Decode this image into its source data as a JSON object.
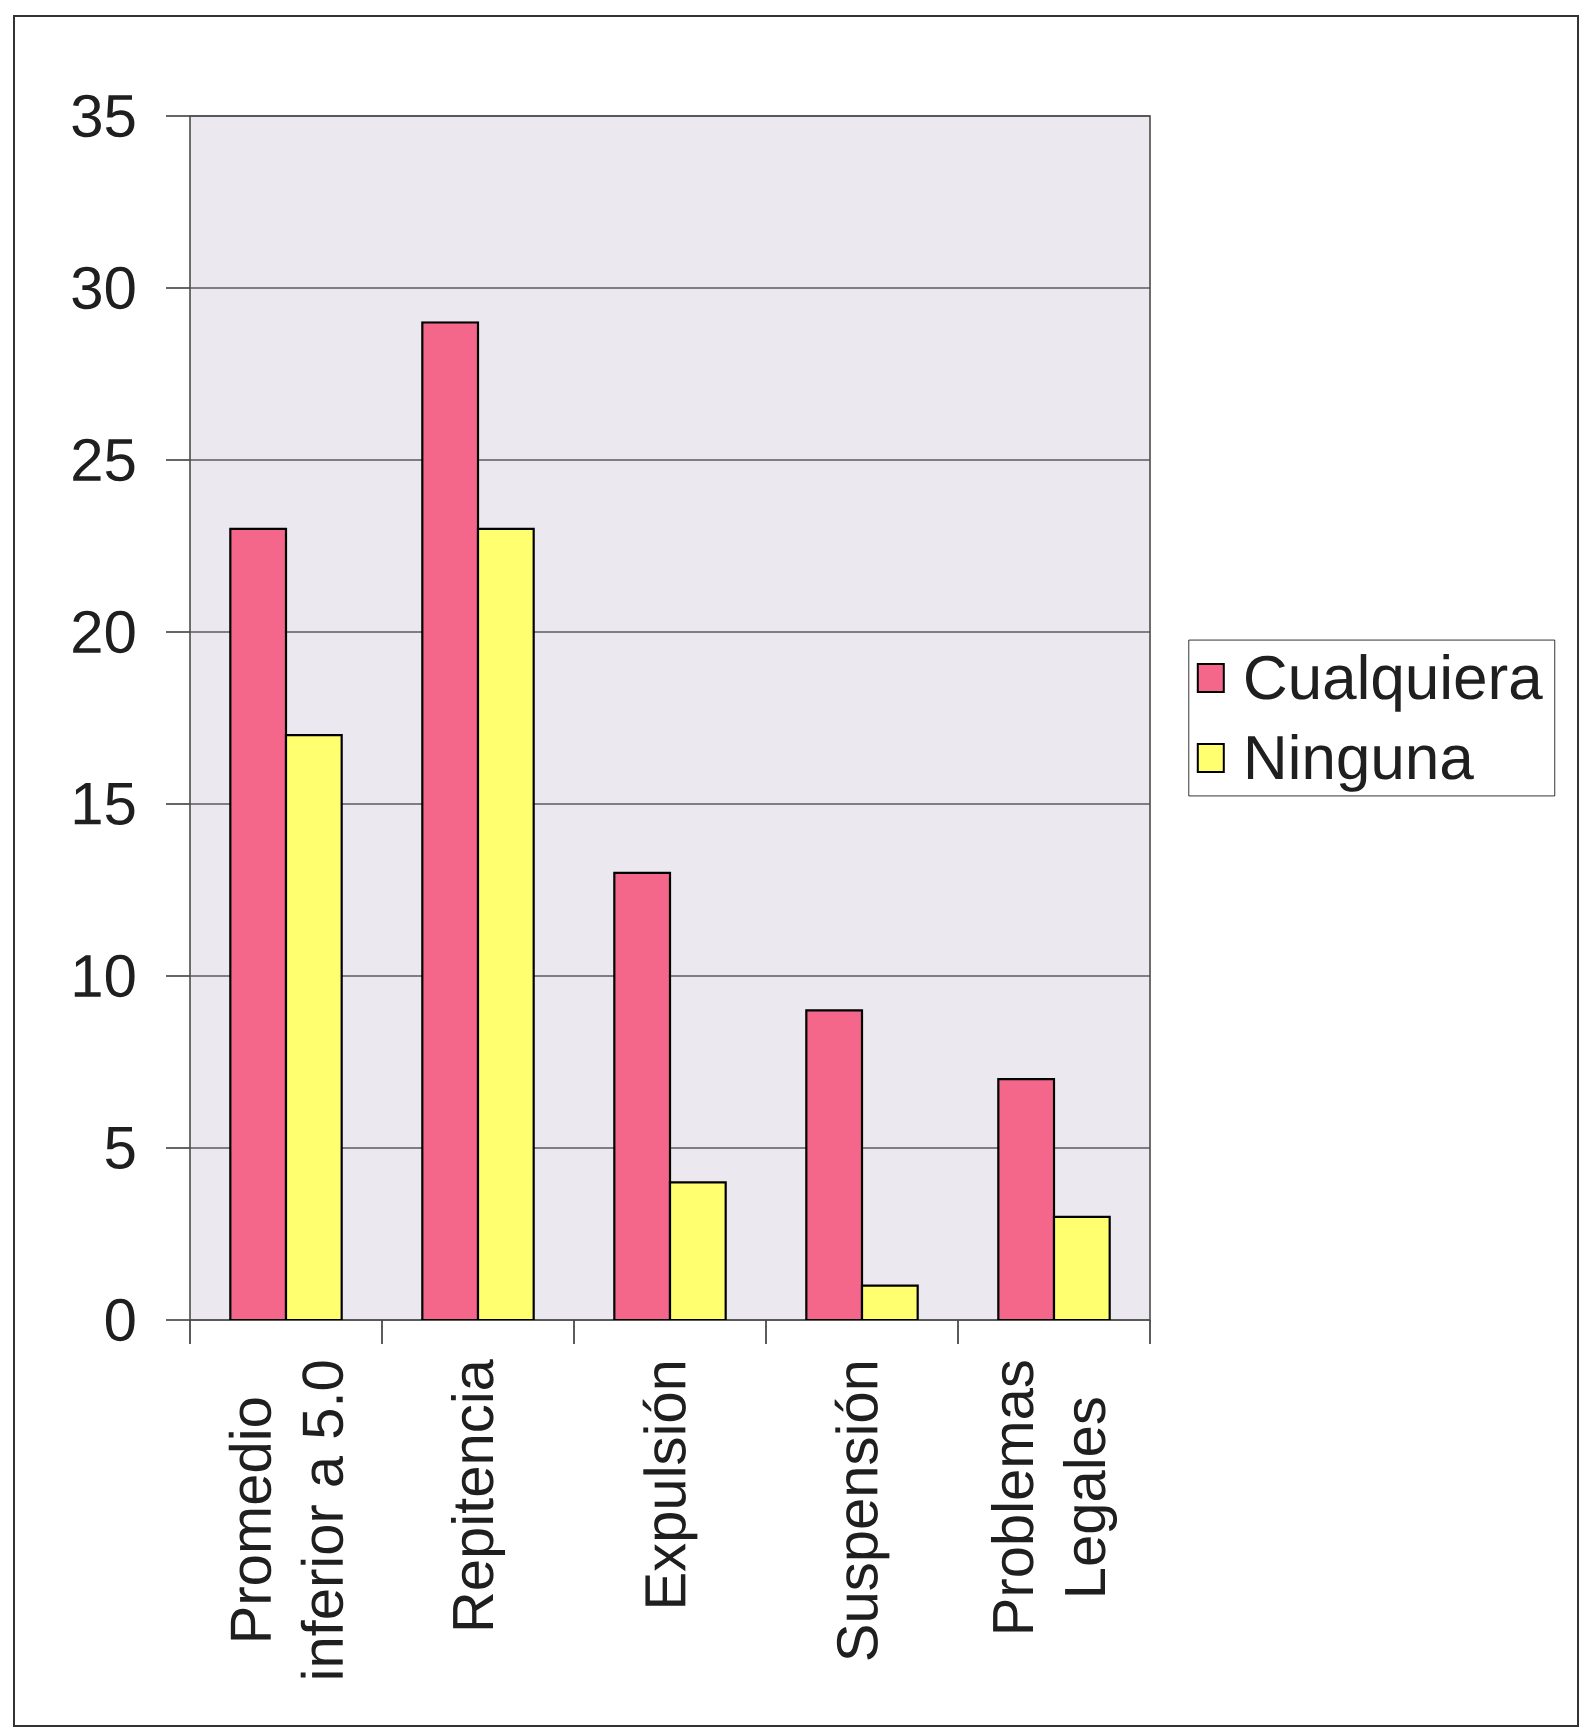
{
  "chart_data": {
    "type": "bar",
    "categories": [
      "Promedio inferior a 5.0",
      "Repitencia",
      "Expulsión",
      "Suspensión",
      "Problemas Legales"
    ],
    "series": [
      {
        "name": "Cualquiera",
        "color": "#f4678a",
        "values": [
          23,
          29,
          13,
          9,
          7
        ]
      },
      {
        "name": "Ninguna",
        "color": "#ffff70",
        "values": [
          17,
          23,
          4,
          1,
          3
        ]
      }
    ],
    "ylim": [
      0,
      35
    ],
    "yticks": [
      0,
      5,
      10,
      15,
      20,
      25,
      30,
      35
    ],
    "grid": "y",
    "legend": "right"
  }
}
